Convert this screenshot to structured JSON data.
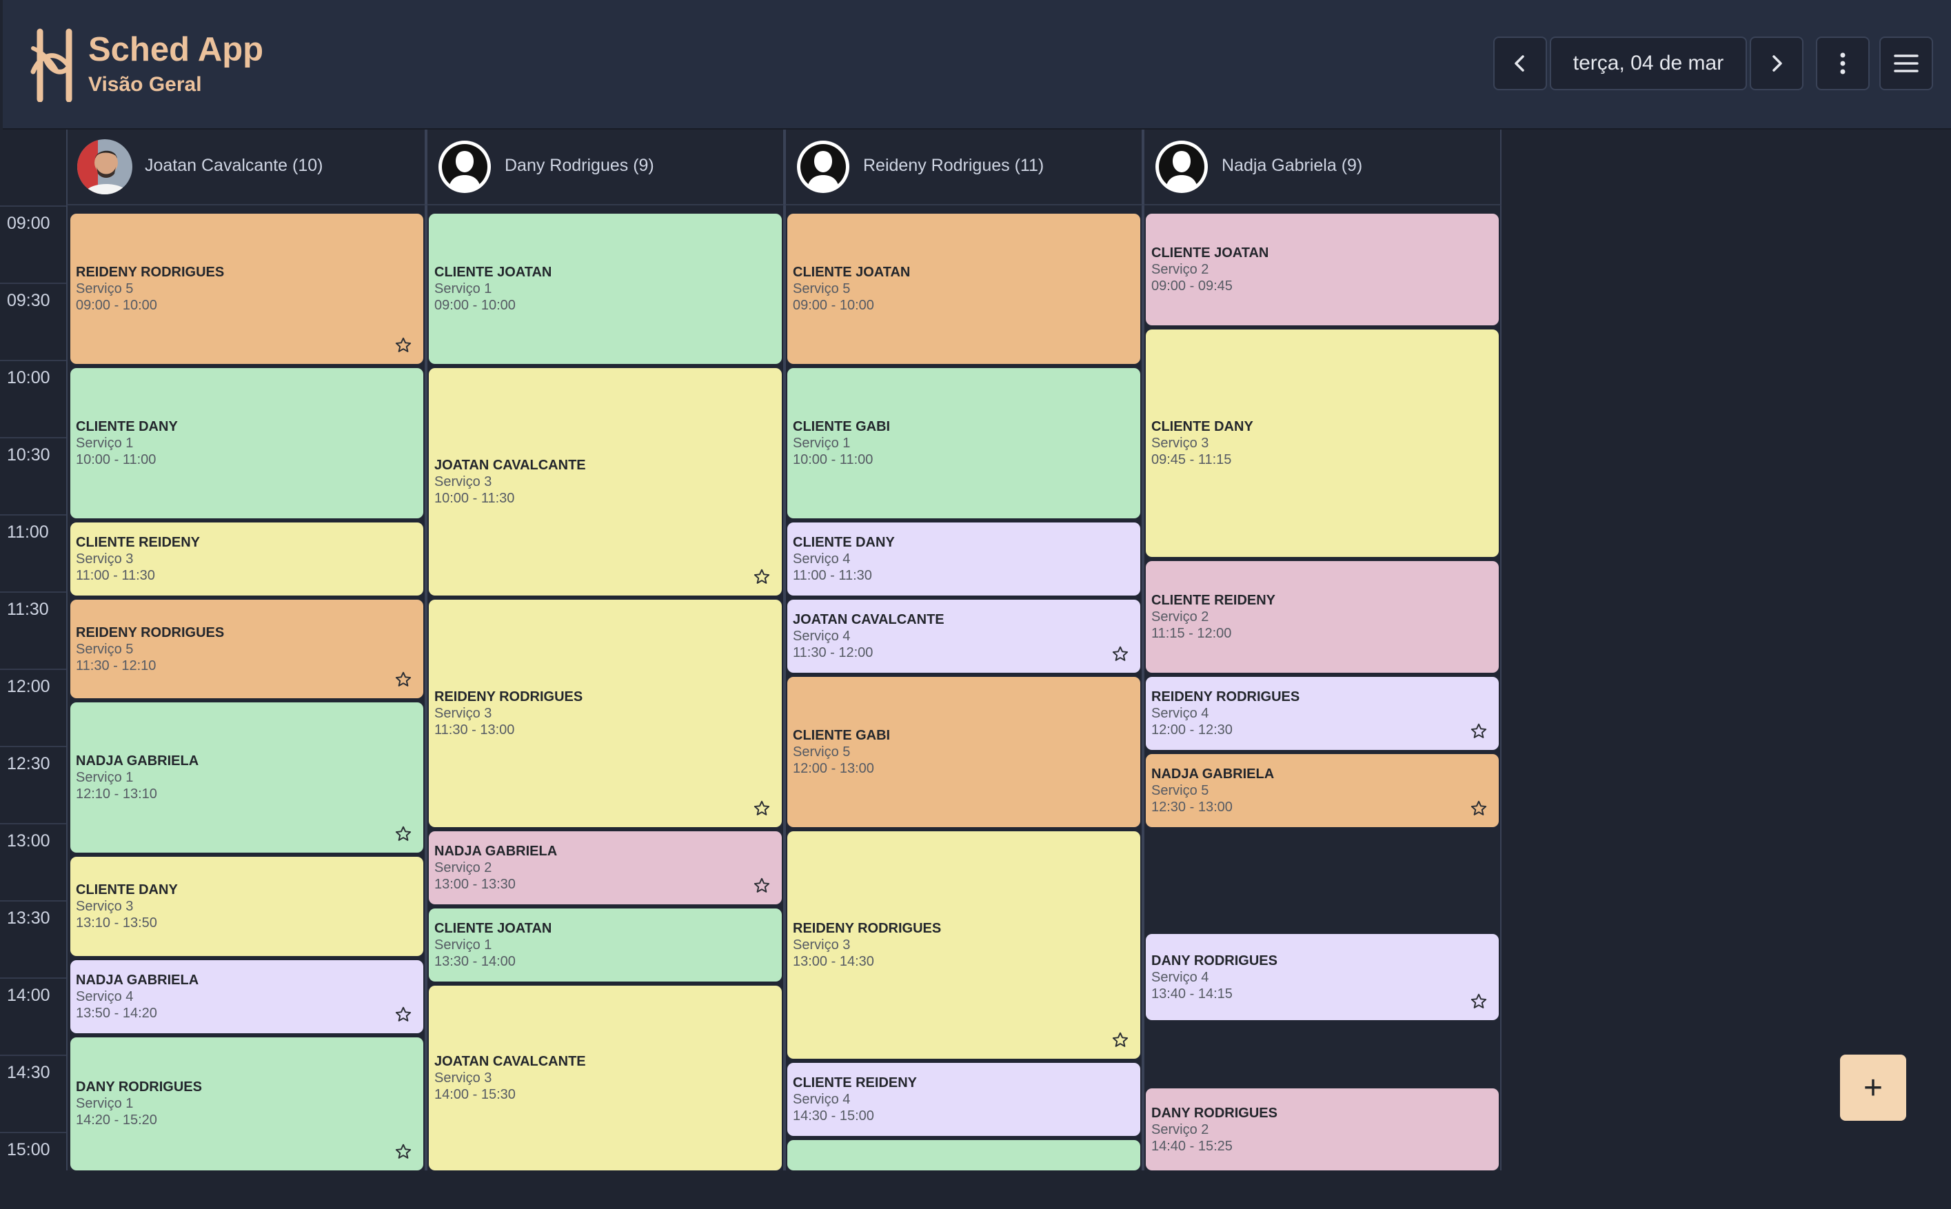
{
  "header": {
    "title": "Sched App",
    "subtitle": "Visão Geral",
    "date": "terça, 04 de mar",
    "icons": {
      "prev": "chevron-left-icon",
      "next": "chevron-right-icon",
      "more": "kebab-menu-icon",
      "menu": "hamburger-menu-icon"
    }
  },
  "colors": {
    "green": "#b8e8c3",
    "orange": "#ecbb88",
    "yellow": "#f2eea8",
    "purple": "#e4dcfb",
    "pink": "#e4c1d1",
    "accent": "#ecc29c"
  },
  "time_slots": [
    "09:00",
    "09:30",
    "10:00",
    "10:30",
    "11:00",
    "11:30",
    "12:00",
    "12:30",
    "13:00",
    "13:30",
    "14:00",
    "14:30",
    "15:00"
  ],
  "staff": [
    {
      "name": "Joatan Cavalcante (10)",
      "appointments": [
        {
          "client": "REIDENY RODRIGUES",
          "service": "Serviço 5",
          "time": "09:00 - 10:00",
          "color": "orange",
          "star": true
        },
        {
          "client": "CLIENTE DANY",
          "service": "Serviço 1",
          "time": "10:00 - 11:00",
          "color": "green",
          "star": false
        },
        {
          "client": "CLIENTE REIDENY",
          "service": "Serviço 3",
          "time": "11:00 - 11:30",
          "color": "yellow",
          "star": false
        },
        {
          "client": "REIDENY RODRIGUES",
          "service": "Serviço 5",
          "time": "11:30 - 12:10",
          "color": "orange",
          "star": true
        },
        {
          "client": "NADJA GABRIELA",
          "service": "Serviço 1",
          "time": "12:10 - 13:10",
          "color": "green",
          "star": true
        },
        {
          "client": "CLIENTE DANY",
          "service": "Serviço 3",
          "time": "13:10 - 13:50",
          "color": "yellow",
          "star": false
        },
        {
          "client": "NADJA GABRIELA",
          "service": "Serviço 4",
          "time": "13:50 - 14:20",
          "color": "purple",
          "star": true
        },
        {
          "client": "DANY RODRIGUES",
          "service": "Serviço 1",
          "time": "14:20 - 15:20",
          "color": "green",
          "star": true
        }
      ]
    },
    {
      "name": "Dany Rodrigues (9)",
      "appointments": [
        {
          "client": "CLIENTE JOATAN",
          "service": "Serviço 1",
          "time": "09:00 - 10:00",
          "color": "green",
          "star": false
        },
        {
          "client": "JOATAN CAVALCANTE",
          "service": "Serviço 3",
          "time": "10:00 - 11:30",
          "color": "yellow",
          "star": true
        },
        {
          "client": "REIDENY RODRIGUES",
          "service": "Serviço 3",
          "time": "11:30 - 13:00",
          "color": "yellow",
          "star": true
        },
        {
          "client": "NADJA GABRIELA",
          "service": "Serviço 2",
          "time": "13:00 - 13:30",
          "color": "pink",
          "star": true
        },
        {
          "client": "CLIENTE JOATAN",
          "service": "Serviço 1",
          "time": "13:30 - 14:00",
          "color": "green",
          "star": false
        },
        {
          "client": "JOATAN CAVALCANTE",
          "service": "Serviço 3",
          "time": "14:00 - 15:30",
          "color": "yellow",
          "star": false
        }
      ]
    },
    {
      "name": "Reideny Rodrigues (11)",
      "appointments": [
        {
          "client": "CLIENTE JOATAN",
          "service": "Serviço 5",
          "time": "09:00 - 10:00",
          "color": "orange",
          "star": false
        },
        {
          "client": "CLIENTE GABI",
          "service": "Serviço 1",
          "time": "10:00 - 11:00",
          "color": "green",
          "star": false
        },
        {
          "client": "CLIENTE DANY",
          "service": "Serviço 4",
          "time": "11:00 - 11:30",
          "color": "purple",
          "star": false
        },
        {
          "client": "JOATAN CAVALCANTE",
          "service": "Serviço 4",
          "time": "11:30 - 12:00",
          "color": "purple",
          "star": true
        },
        {
          "client": "CLIENTE GABI",
          "service": "Serviço 5",
          "time": "12:00 - 13:00",
          "color": "orange",
          "star": false
        },
        {
          "client": "REIDENY RODRIGUES",
          "service": "Serviço 3",
          "time": "13:00 - 14:30",
          "color": "yellow",
          "star": true
        },
        {
          "client": "CLIENTE REIDENY",
          "service": "Serviço 4",
          "time": "14:30 - 15:00",
          "color": "purple",
          "star": false
        },
        {
          "client": "",
          "service": "",
          "time": "",
          "color": "green",
          "star": false
        }
      ]
    },
    {
      "name": "Nadja Gabriela (9)",
      "appointments": [
        {
          "client": "CLIENTE JOATAN",
          "service": "Serviço 2",
          "time": "09:00 - 09:45",
          "color": "pink",
          "star": false
        },
        {
          "client": "CLIENTE DANY",
          "service": "Serviço 3",
          "time": "09:45 - 11:15",
          "color": "yellow",
          "star": false
        },
        {
          "client": "CLIENTE REIDENY",
          "service": "Serviço 2",
          "time": "11:15 - 12:00",
          "color": "pink",
          "star": false
        },
        {
          "client": "REIDENY RODRIGUES",
          "service": "Serviço 4",
          "time": "12:00 - 12:30",
          "color": "purple",
          "star": true
        },
        {
          "client": "NADJA GABRIELA",
          "service": "Serviço 5",
          "time": "12:30 - 13:00",
          "color": "orange",
          "star": true
        },
        {
          "client": "DANY RODRIGUES",
          "service": "Serviço 4",
          "time": "13:40 - 14:15",
          "color": "purple",
          "star": true
        },
        {
          "client": "DANY RODRIGUES",
          "service": "Serviço 2",
          "time": "14:40 - 15:25",
          "color": "pink",
          "star": false
        }
      ]
    }
  ],
  "fab": {
    "label": "+",
    "icon": "plus-icon"
  }
}
